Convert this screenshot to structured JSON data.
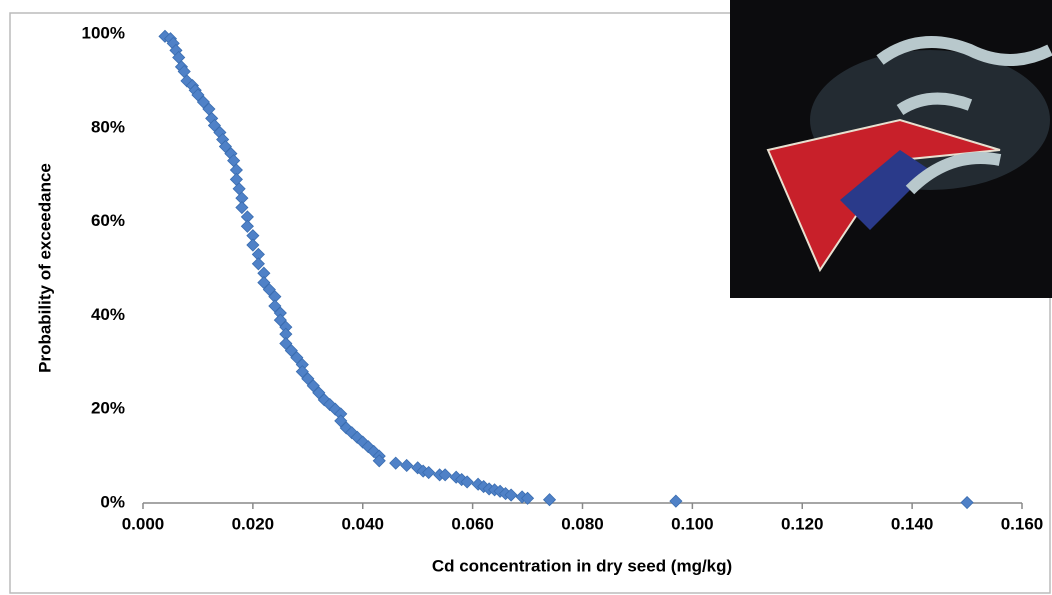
{
  "chart_data": {
    "type": "scatter",
    "x_label": "Cd concentration in dry seed (mg/kg)",
    "y_label": "Probability of exceedance",
    "color": "#4f81c7",
    "grid": false,
    "xlim": [
      0,
      0.16
    ],
    "xticks": [
      {
        "value": 0,
        "label": "0.000"
      },
      {
        "value": 0.02,
        "label": "0.020"
      },
      {
        "value": 0.04,
        "label": "0.040"
      },
      {
        "value": 0.06,
        "label": "0.060"
      },
      {
        "value": 0.08,
        "label": "0.080"
      },
      {
        "value": 0.1,
        "label": "0.100"
      },
      {
        "value": 0.12,
        "label": "0.120"
      },
      {
        "value": 0.14,
        "label": "0.140"
      },
      {
        "value": 0.16,
        "label": "0.160"
      }
    ],
    "ylim": [
      0,
      100
    ],
    "yticks": [
      {
        "value": 0,
        "label": "0%"
      },
      {
        "value": 20,
        "label": "20%"
      },
      {
        "value": 40,
        "label": "40%"
      },
      {
        "value": 60,
        "label": "60%"
      },
      {
        "value": 80,
        "label": "80%"
      },
      {
        "value": 100,
        "label": "100%"
      }
    ],
    "x": [
      0.004,
      0.005,
      0.0055,
      0.006,
      0.0065,
      0.007,
      0.0075,
      0.008,
      0.009,
      0.0095,
      0.01,
      0.011,
      0.012,
      0.0125,
      0.013,
      0.014,
      0.0145,
      0.015,
      0.016,
      0.0165,
      0.017,
      0.017,
      0.0175,
      0.018,
      0.018,
      0.019,
      0.019,
      0.02,
      0.02,
      0.021,
      0.021,
      0.022,
      0.022,
      0.023,
      0.024,
      0.024,
      0.025,
      0.025,
      0.026,
      0.026,
      0.026,
      0.027,
      0.028,
      0.029,
      0.029,
      0.03,
      0.031,
      0.032,
      0.033,
      0.034,
      0.035,
      0.036,
      0.036,
      0.037,
      0.038,
      0.039,
      0.04,
      0.041,
      0.042,
      0.043,
      0.043,
      0.046,
      0.048,
      0.05,
      0.051,
      0.052,
      0.054,
      0.055,
      0.057,
      0.058,
      0.059,
      0.061,
      0.062,
      0.063,
      0.064,
      0.065,
      0.066,
      0.067,
      0.069,
      0.07,
      0.074,
      0.097,
      0.15
    ],
    "values": [
      99.5,
      99,
      98,
      96.5,
      95,
      93,
      92,
      90,
      89,
      88,
      87,
      85.5,
      84,
      82,
      80.5,
      79,
      77.5,
      76,
      74.5,
      73,
      71,
      69,
      67,
      65,
      63,
      61,
      59,
      57,
      55,
      53,
      51,
      49,
      47,
      45.5,
      44,
      42,
      40.5,
      39,
      37.5,
      36,
      34,
      32.5,
      31,
      29.5,
      28,
      26.5,
      25,
      23.5,
      22,
      21,
      20,
      19,
      17.5,
      16,
      15,
      14,
      13,
      12,
      11,
      10,
      9,
      8.5,
      8,
      7.5,
      6.8,
      6.5,
      6,
      6,
      5.5,
      5,
      4.5,
      4,
      3.5,
      3,
      2.8,
      2.5,
      2,
      1.7,
      1.3,
      1,
      0.7,
      0.4,
      0.1
    ]
  }
}
